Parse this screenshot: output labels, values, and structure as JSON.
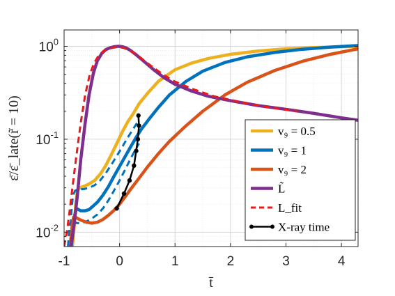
{
  "chart_data": {
    "type": "line",
    "xlabel": "t̄",
    "ylabel": "ε̄/ε̄_late(r̃ = 10)",
    "xlim": [
      -1,
      4.3
    ],
    "ylim": [
      0.007,
      1.5
    ],
    "yscale": "log",
    "grid": true,
    "legend_placement": "bottom-right",
    "xticks": [
      -1,
      0,
      1,
      2,
      3,
      4
    ],
    "xtick_labels": [
      "-1",
      "0",
      "1",
      "2",
      "3",
      "4"
    ],
    "yticks": [
      0.01,
      0.1,
      1
    ],
    "ytick_labels": [
      {
        "base": "10",
        "exp": "-2"
      },
      {
        "base": "10",
        "exp": "-1"
      },
      {
        "base": "10",
        "exp": "0"
      }
    ],
    "legend": [
      {
        "label": "v₉ = 0.5",
        "color": "#EDB120",
        "style": "solid"
      },
      {
        "label": "v₉ = 1",
        "color": "#0072BD",
        "style": "solid"
      },
      {
        "label": "v₉ = 2",
        "color": "#D95319",
        "style": "solid"
      },
      {
        "label": "L̃",
        "color": "#7E2F8E",
        "style": "solid"
      },
      {
        "label": "L_fit",
        "color": "#E41A1C",
        "style": "dashed"
      },
      {
        "label": "X-ray time",
        "color": "#000000",
        "style": "solid-marker"
      }
    ],
    "series": [
      {
        "key": "v05",
        "color": "#EDB120",
        "style": "solid",
        "x": [
          -0.85,
          -0.82,
          -0.79,
          -0.76,
          -0.72,
          -0.65,
          -0.55,
          -0.45,
          -0.35,
          -0.25,
          -0.15,
          -0.05,
          0.05,
          0.15,
          0.25,
          0.35,
          0.5,
          0.7,
          1.0,
          1.3,
          1.6,
          2.0,
          2.5,
          3.0,
          3.5,
          4.0,
          4.3
        ],
        "y": [
          0.007,
          0.011,
          0.02,
          0.028,
          0.03,
          0.031,
          0.033,
          0.036,
          0.042,
          0.052,
          0.068,
          0.09,
          0.12,
          0.155,
          0.19,
          0.24,
          0.31,
          0.42,
          0.56,
          0.66,
          0.74,
          0.82,
          0.89,
          0.94,
          0.97,
          0.99,
          1.0
        ]
      },
      {
        "key": "v05_dashed",
        "color": "#0072BD",
        "style": "dashed",
        "x": [
          -0.9,
          -0.87,
          -0.84,
          -0.8,
          -0.74,
          -0.65,
          -0.55,
          -0.45,
          -0.35,
          -0.25,
          -0.15,
          -0.05,
          0.05,
          0.15,
          0.25,
          0.33
        ],
        "y": [
          0.007,
          0.016,
          0.025,
          0.028,
          0.029,
          0.029,
          0.03,
          0.032,
          0.036,
          0.043,
          0.053,
          0.066,
          0.083,
          0.105,
          0.13,
          0.155
        ]
      },
      {
        "key": "v1",
        "color": "#0072BD",
        "style": "solid",
        "x": [
          -0.87,
          -0.84,
          -0.81,
          -0.78,
          -0.74,
          -0.7,
          -0.62,
          -0.55,
          -0.48,
          -0.4,
          -0.3,
          -0.2,
          -0.1,
          0.0,
          0.1,
          0.2,
          0.3,
          0.4,
          0.55,
          0.7,
          0.9,
          1.2,
          1.5,
          1.9,
          2.3,
          2.8,
          3.3,
          3.8,
          4.3
        ],
        "y": [
          0.007,
          0.01,
          0.015,
          0.018,
          0.0175,
          0.017,
          0.017,
          0.0175,
          0.019,
          0.021,
          0.025,
          0.031,
          0.04,
          0.051,
          0.065,
          0.083,
          0.105,
          0.13,
          0.17,
          0.22,
          0.3,
          0.42,
          0.54,
          0.67,
          0.77,
          0.86,
          0.93,
          0.98,
          1.02
        ]
      },
      {
        "key": "v1_dashed",
        "color": "#0072BD",
        "style": "dashed",
        "x": [
          -0.93,
          -0.9,
          -0.86,
          -0.82,
          -0.77,
          -0.7,
          -0.6,
          -0.5,
          -0.4,
          -0.3,
          -0.2,
          -0.1,
          0.0,
          0.1,
          0.2,
          0.3,
          0.35
        ],
        "y": [
          0.007,
          0.012,
          0.014,
          0.013,
          0.0125,
          0.0125,
          0.013,
          0.014,
          0.0155,
          0.018,
          0.022,
          0.028,
          0.036,
          0.047,
          0.062,
          0.08,
          0.09
        ]
      },
      {
        "key": "v2",
        "color": "#D95319",
        "style": "solid",
        "x": [
          -0.89,
          -0.86,
          -0.83,
          -0.8,
          -0.75,
          -0.7,
          -0.6,
          -0.5,
          -0.4,
          -0.3,
          -0.2,
          -0.1,
          0.0,
          0.1,
          0.2,
          0.35,
          0.5,
          0.7,
          0.9,
          1.2,
          1.5,
          1.9,
          2.3,
          2.8,
          3.3,
          3.8,
          4.3
        ],
        "y": [
          0.007,
          0.011,
          0.0145,
          0.0145,
          0.014,
          0.0135,
          0.0128,
          0.0125,
          0.0128,
          0.0137,
          0.0152,
          0.0172,
          0.02,
          0.024,
          0.029,
          0.038,
          0.05,
          0.07,
          0.095,
          0.14,
          0.2,
          0.3,
          0.41,
          0.55,
          0.69,
          0.82,
          0.94
        ]
      },
      {
        "key": "L",
        "color": "#7E2F8E",
        "style": "solid",
        "x": [
          -0.88,
          -0.82,
          -0.76,
          -0.7,
          -0.62,
          -0.55,
          -0.47,
          -0.4,
          -0.32,
          -0.25,
          -0.18,
          -0.1,
          -0.03,
          0.0,
          0.05,
          0.12,
          0.2,
          0.3,
          0.45,
          0.6,
          0.8,
          1.0,
          1.3,
          1.6,
          2.0,
          2.5,
          3.0,
          3.5,
          4.0,
          4.3
        ],
        "y": [
          0.007,
          0.012,
          0.025,
          0.06,
          0.15,
          0.3,
          0.52,
          0.7,
          0.84,
          0.92,
          0.96,
          0.99,
          1.0,
          1.0,
          0.99,
          0.96,
          0.9,
          0.81,
          0.68,
          0.57,
          0.46,
          0.39,
          0.33,
          0.29,
          0.26,
          0.23,
          0.21,
          0.19,
          0.17,
          0.16
        ]
      },
      {
        "key": "Lfit",
        "color": "#E41A1C",
        "style": "dashed",
        "x": [
          -1.0,
          -0.95,
          -0.9,
          -0.85,
          -0.78,
          -0.7,
          -0.62,
          -0.54,
          -0.46,
          -0.38,
          -0.3,
          -0.22,
          -0.14,
          -0.06,
          0.0,
          0.08,
          0.2,
          0.35,
          0.5,
          0.7,
          0.95,
          1.3,
          1.7,
          2.2,
          2.7,
          3.2
        ],
        "y": [
          0.007,
          0.01,
          0.017,
          0.03,
          0.065,
          0.15,
          0.3,
          0.49,
          0.66,
          0.79,
          0.88,
          0.93,
          0.96,
          0.98,
          0.98,
          0.96,
          0.89,
          0.78,
          0.66,
          0.54,
          0.43,
          0.35,
          0.29,
          0.25,
          0.22,
          0.2
        ]
      },
      {
        "key": "xray",
        "color": "#000000",
        "style": "marker-line",
        "x": [
          -0.05,
          0.08,
          0.18,
          0.26,
          0.3,
          0.33,
          0.35,
          0.34
        ],
        "y": [
          0.018,
          0.026,
          0.036,
          0.052,
          0.075,
          0.1,
          0.14,
          0.18
        ]
      }
    ]
  }
}
